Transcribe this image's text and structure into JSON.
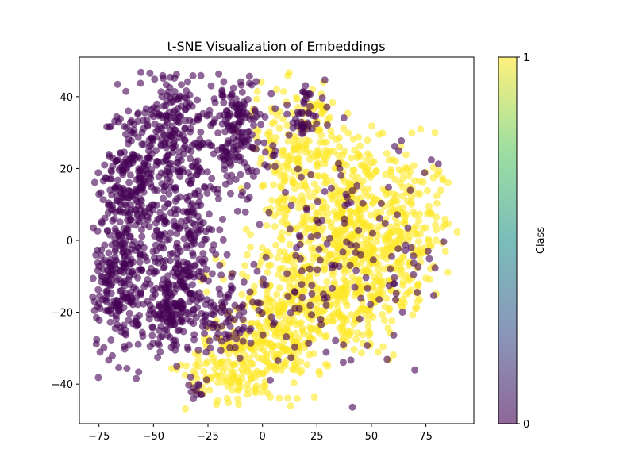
{
  "chart_data": {
    "type": "scatter",
    "title": "t-SNE Visualization of Embeddings",
    "xlabel": "",
    "ylabel": "",
    "xlim": [
      -84,
      97
    ],
    "ylim": [
      -51,
      51
    ],
    "x_ticks": [
      -75,
      -50,
      -25,
      0,
      25,
      50,
      75
    ],
    "y_ticks": [
      -40,
      -20,
      0,
      20,
      40
    ],
    "x_tick_labels": [
      "−75",
      "−50",
      "−25",
      "0",
      "25",
      "50",
      "75"
    ],
    "y_tick_labels": [
      "−40",
      "−20",
      "0",
      "20",
      "40"
    ],
    "grid": false,
    "point_alpha": 0.6,
    "colorbar": {
      "label": "Class",
      "min": 0,
      "max": 1,
      "tick_labels": [
        "0",
        "1"
      ],
      "colormap": "viridis",
      "colors": [
        "#440154",
        "#3b528b",
        "#21918c",
        "#5ec962",
        "#fde725"
      ]
    },
    "class_colors": {
      "0": "#440154",
      "1": "#fde725"
    },
    "clusters": [
      {
        "class": 0,
        "cx": -60,
        "cy": 15,
        "sx": 7,
        "sy": 12,
        "n": 260
      },
      {
        "class": 0,
        "cx": -67,
        "cy": -12,
        "sx": 7,
        "sy": 10,
        "n": 220
      },
      {
        "class": 0,
        "cx": -40,
        "cy": 30,
        "sx": 9,
        "sy": 9,
        "n": 200
      },
      {
        "class": 0,
        "cx": -35,
        "cy": 0,
        "sx": 8,
        "sy": 12,
        "n": 230
      },
      {
        "class": 0,
        "cx": -42,
        "cy": -20,
        "sx": 7,
        "sy": 6,
        "n": 150
      },
      {
        "class": 0,
        "cx": -12,
        "cy": 30,
        "sx": 8,
        "sy": 9,
        "n": 180
      },
      {
        "class": 0,
        "cx": 20,
        "cy": 35,
        "sx": 4,
        "sy": 4,
        "n": 40
      },
      {
        "class": 0,
        "cx": -15,
        "cy": -22,
        "sx": 8,
        "sy": 5,
        "n": 70
      },
      {
        "class": 0,
        "cx": -30,
        "cy": -42,
        "sx": 2,
        "sy": 3,
        "n": 15
      },
      {
        "class": 1,
        "cx": 60,
        "cy": 2,
        "sx": 14,
        "sy": 12,
        "n": 320
      },
      {
        "class": 1,
        "cx": 40,
        "cy": 10,
        "sx": 7,
        "sy": 10,
        "n": 170
      },
      {
        "class": 1,
        "cx": 20,
        "cy": 10,
        "sx": 8,
        "sy": 14,
        "n": 150
      },
      {
        "class": 1,
        "cx": 10,
        "cy": -20,
        "sx": 15,
        "sy": 9,
        "n": 230
      },
      {
        "class": 1,
        "cx": 40,
        "cy": -15,
        "sx": 14,
        "sy": 9,
        "n": 200
      },
      {
        "class": 1,
        "cx": -15,
        "cy": -35,
        "sx": 10,
        "sy": 5,
        "n": 120
      },
      {
        "class": 1,
        "cx": 5,
        "cy": -30,
        "sx": 10,
        "sy": 6,
        "n": 110
      },
      {
        "class": 1,
        "cx": 10,
        "cy": 25,
        "sx": 10,
        "sy": 9,
        "n": 110
      },
      {
        "class": 1,
        "cx": 25,
        "cy": 35,
        "sx": 4,
        "sy": 5,
        "n": 30
      },
      {
        "class": 0,
        "cx": 15,
        "cy": -15,
        "sx": 14,
        "sy": 9,
        "n": 50
      },
      {
        "class": 0,
        "cx": 45,
        "cy": -10,
        "sx": 16,
        "sy": 13,
        "n": 55
      },
      {
        "class": 0,
        "cx": 20,
        "cy": 15,
        "sx": 12,
        "sy": 12,
        "n": 30
      },
      {
        "class": 0,
        "cx": 65,
        "cy": 0,
        "sx": 12,
        "sy": 13,
        "n": 25
      }
    ]
  }
}
